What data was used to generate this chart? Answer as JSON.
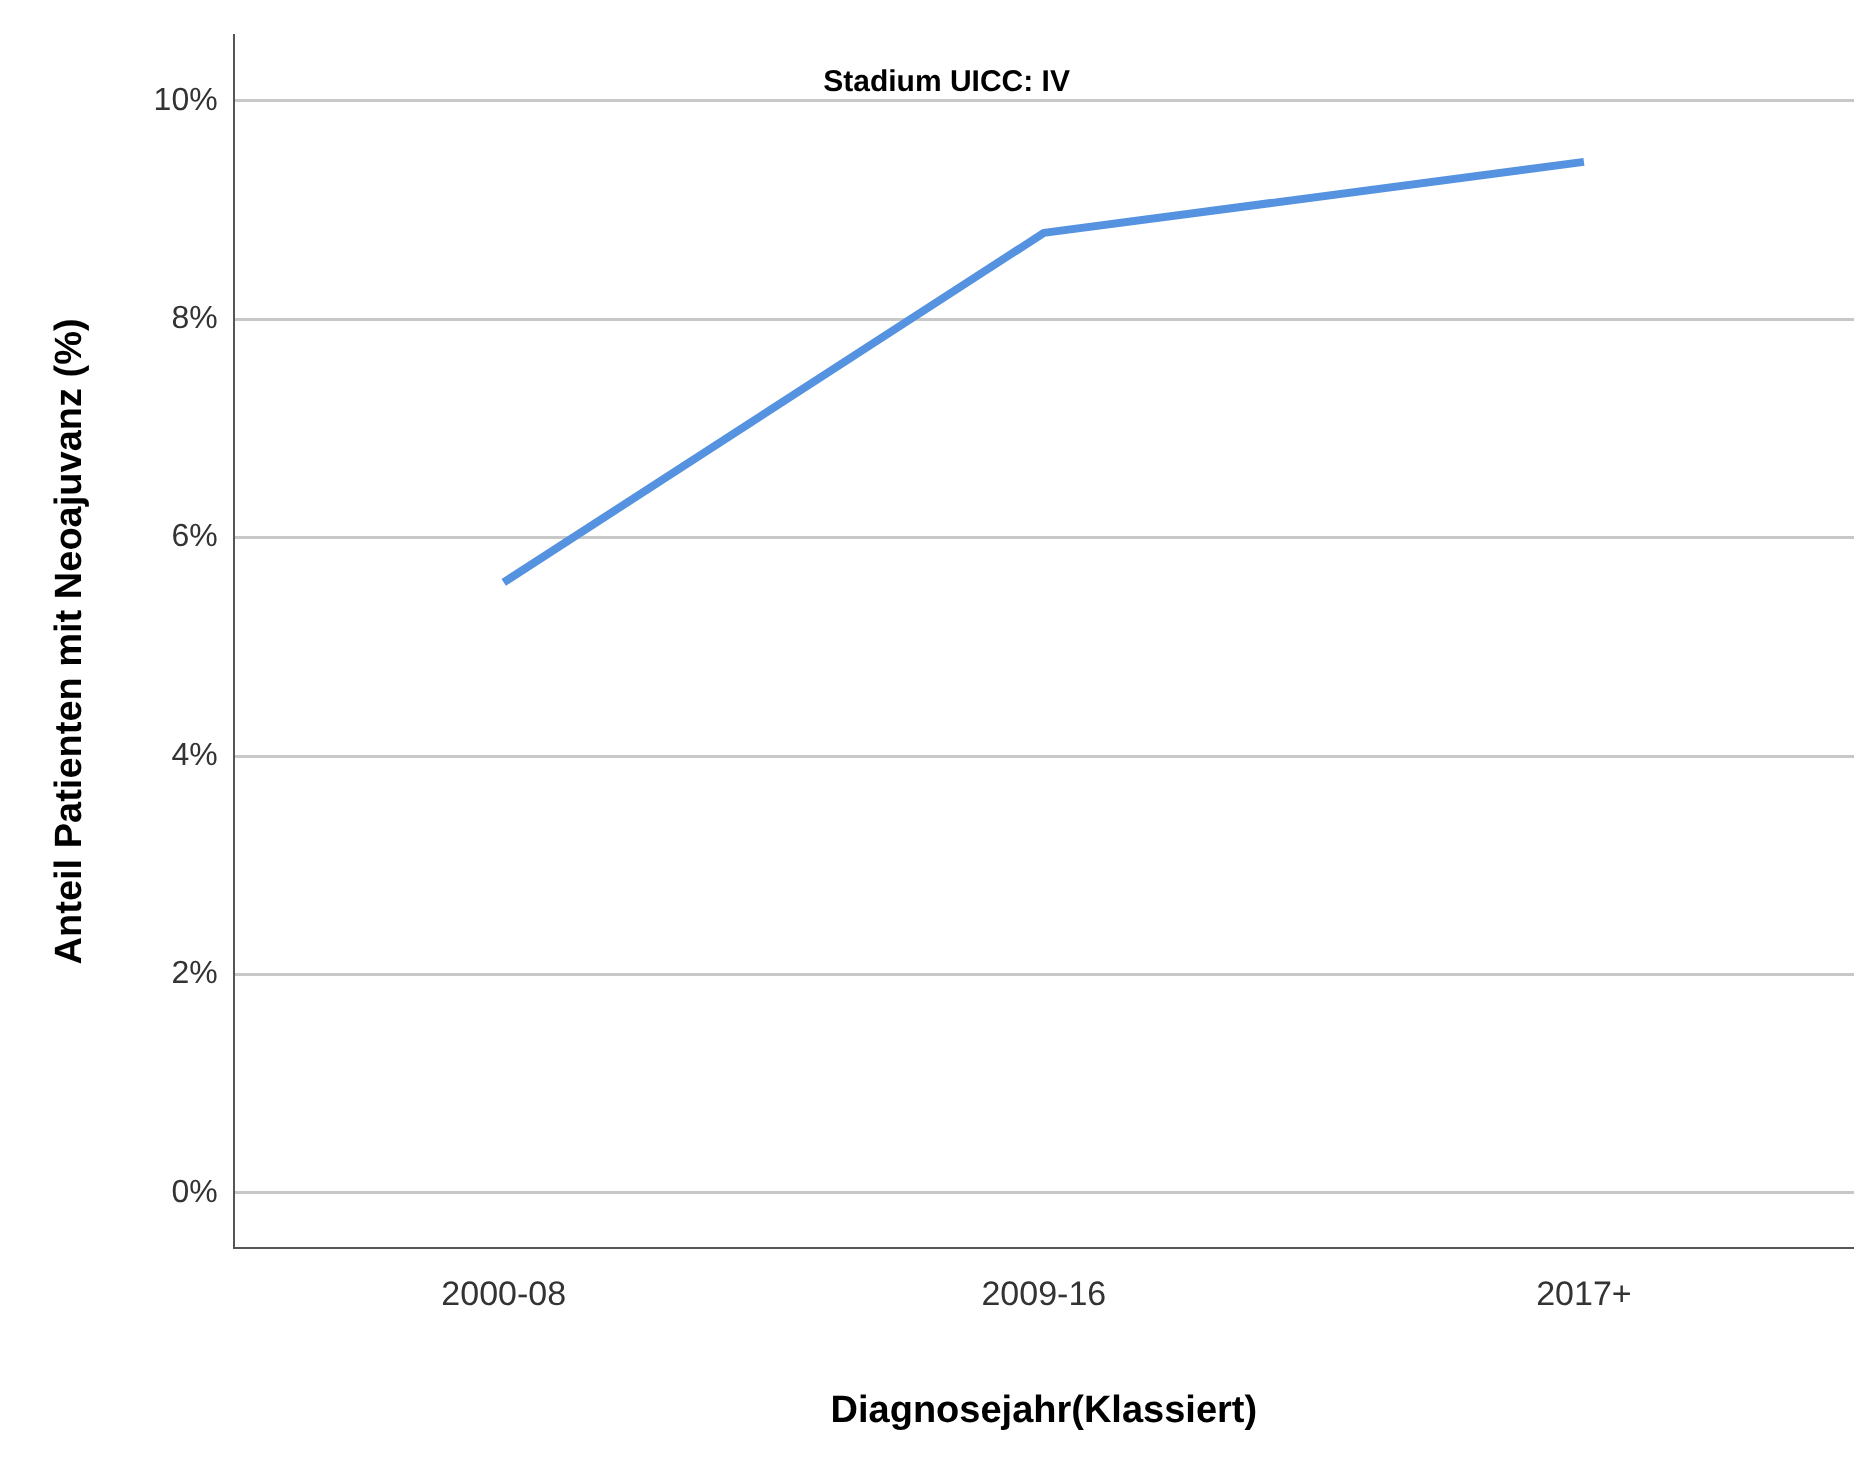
{
  "chart_data": {
    "type": "line",
    "title": "Stadium UICC: IV",
    "xlabel": "Diagnosejahr(Klassiert)",
    "ylabel": "Anteil Patienten mit Neoajuvanz (%)",
    "categories": [
      "2000-08",
      "2009-16",
      "2017+"
    ],
    "series": [
      {
        "color": "#5592e0",
        "values": [
          5.59,
          8.79,
          9.44
        ]
      }
    ],
    "ylim": [
      -0.5,
      10.6
    ],
    "yticks": [
      {
        "value": 0,
        "label": "0%"
      },
      {
        "value": 2,
        "label": "2%"
      },
      {
        "value": 4,
        "label": "4%"
      },
      {
        "value": 6,
        "label": "6%"
      },
      {
        "value": 8,
        "label": "8%"
      },
      {
        "value": 10,
        "label": "10%"
      }
    ],
    "grid": "y",
    "legend": false,
    "marker": "none",
    "line_style": "solid"
  }
}
